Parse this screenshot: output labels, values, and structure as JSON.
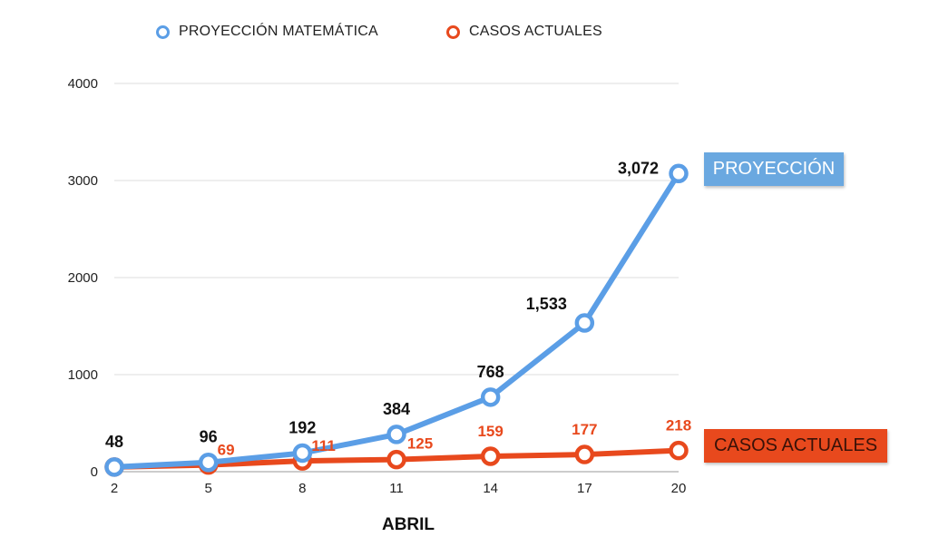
{
  "legend": [
    {
      "label": "PROYECCIÓN MATEMÁTICA",
      "color": "#5b9ee6"
    },
    {
      "label": "CASOS ACTUALES",
      "color": "#e8491d"
    }
  ],
  "tags": {
    "proyeccion": "PROYECCIÓN",
    "casos": "CASOS ACTUALES"
  },
  "chart_data": {
    "type": "line",
    "xlabel": "ABRIL",
    "ylabel": "",
    "categories": [
      "2",
      "5",
      "8",
      "11",
      "14",
      "17",
      "20"
    ],
    "ylim": [
      0,
      4000
    ],
    "yticks": [
      "0",
      "1000",
      "2000",
      "3000",
      "4000"
    ],
    "grid": true,
    "legend_position": "top",
    "series": [
      {
        "name": "PROYECCIÓN MATEMÁTICA",
        "color": "#5b9ee6",
        "label_color": "#111111",
        "values": [
          48,
          96,
          192,
          384,
          768,
          1533,
          3072
        ],
        "labels": [
          "48",
          "96",
          "192",
          "384",
          "768",
          "1,533",
          "3,072"
        ]
      },
      {
        "name": "CASOS ACTUALES",
        "color": "#e8491d",
        "label_color": "#e8491d",
        "values": [
          48,
          69,
          111,
          125,
          159,
          177,
          218
        ],
        "labels": [
          "",
          "69",
          "111",
          "125",
          "159",
          "177",
          "218"
        ]
      }
    ]
  }
}
